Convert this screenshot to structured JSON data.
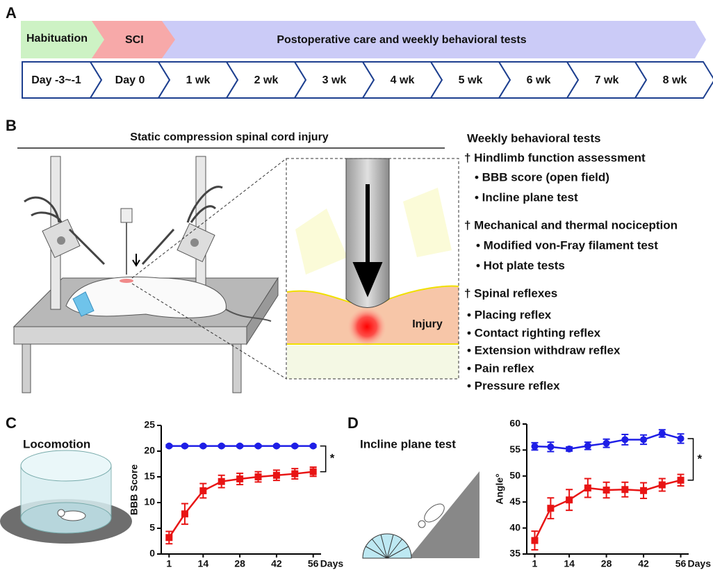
{
  "panel_labels": [
    "A",
    "B",
    "C",
    "D"
  ],
  "timeline": {
    "phases": [
      "Habituation",
      "SCI",
      "Postoperative care and weekly behavioral tests"
    ],
    "steps": [
      "Day -3~-1",
      "Day 0",
      "1 wk",
      "2 wk",
      "3 wk",
      "4 wk",
      "5 wk",
      "6 wk",
      "7 wk",
      "8 wk"
    ]
  },
  "surgery": {
    "title": "Static compression spinal cord injury",
    "inset_label": "Injury"
  },
  "tests": {
    "title": "Weekly behavioral tests",
    "groups": [
      {
        "heading": "† Hindlimb function assessment",
        "items": [
          "• BBB score (open field)",
          "• Incline plane test"
        ]
      },
      {
        "heading": "† Mechanical and thermal nociception",
        "items": [
          "• Modified von-Fray filament test",
          "• Hot plate tests"
        ]
      },
      {
        "heading": "† Spinal reflexes",
        "items": [
          "• Placing reflex",
          "• Contact righting reflex",
          "• Extension withdraw reflex",
          "• Pain reflex",
          "• Pressure reflex"
        ]
      }
    ]
  },
  "chart_data": [
    {
      "type": "line",
      "title": "Locomotion",
      "ylabel": "BBB Score",
      "xlabel": "Days",
      "significance": "*",
      "x": [
        1,
        7,
        14,
        21,
        28,
        35,
        42,
        49,
        56
      ],
      "xlim": [
        -2,
        59
      ],
      "xticks": [
        1,
        14,
        28,
        42,
        56
      ],
      "ylim": [
        0,
        25
      ],
      "yticks": [
        0,
        5,
        10,
        15,
        20,
        25
      ],
      "series": [
        {
          "color": "#1e1ee6",
          "marker": "circle",
          "values": [
            21,
            21,
            21,
            21,
            21,
            21,
            21,
            21,
            21
          ],
          "errors": [
            0.2,
            0.2,
            0.2,
            0.2,
            0.2,
            0.2,
            0.2,
            0.2,
            0.2
          ]
        },
        {
          "color": "#e81414",
          "marker": "square",
          "values": [
            3.2,
            7.8,
            12.3,
            14.1,
            14.6,
            15.0,
            15.3,
            15.6,
            16.0
          ],
          "errors": [
            1.2,
            2.0,
            1.4,
            1.2,
            1.1,
            1.0,
            1.0,
            1.0,
            0.9
          ]
        }
      ]
    },
    {
      "type": "line",
      "title": "Incline plane test",
      "ylabel": "Angle°",
      "xlabel": "Days",
      "significance": "*",
      "x": [
        1,
        7,
        14,
        21,
        28,
        35,
        42,
        49,
        56
      ],
      "xlim": [
        -2,
        59
      ],
      "xticks": [
        1,
        14,
        28,
        42,
        56
      ],
      "ylim": [
        35,
        60
      ],
      "yticks": [
        35,
        40,
        45,
        50,
        55,
        60
      ],
      "series": [
        {
          "color": "#1e1ee6",
          "marker": "circle",
          "values": [
            55.7,
            55.6,
            55.2,
            55.8,
            56.3,
            57.0,
            57.0,
            58.2,
            57.2
          ],
          "errors": [
            0.7,
            0.9,
            0.4,
            0.7,
            0.8,
            1.0,
            0.9,
            0.7,
            0.9
          ]
        },
        {
          "color": "#e81414",
          "marker": "square",
          "values": [
            37.6,
            43.8,
            45.4,
            47.7,
            47.3,
            47.4,
            47.2,
            48.3,
            49.2
          ],
          "errors": [
            1.8,
            2.0,
            2.0,
            1.8,
            1.5,
            1.4,
            1.5,
            1.2,
            1.1
          ]
        }
      ]
    }
  ]
}
